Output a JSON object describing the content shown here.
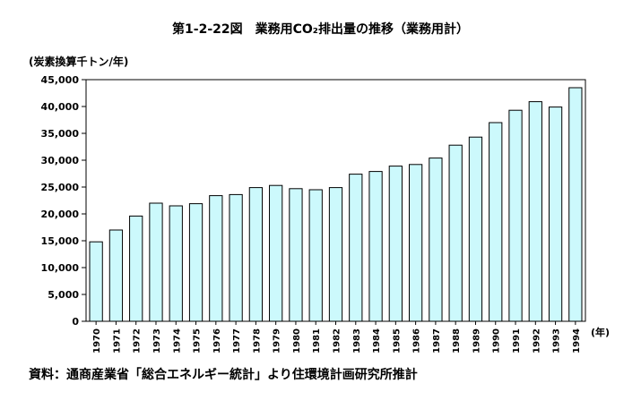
{
  "title": "第1-2-22図　業務用CO₂排出量の推移（業務用計）",
  "unit_label": "(炭素換算千トン/年)",
  "x_unit_label": "(年)",
  "source": "資料：通商産業省「総合エネルギー統計」より住環境計画研究所推計",
  "colors": {
    "bar_fill": "#ccf9fc",
    "bar_stroke": "#000000"
  },
  "chart_data": {
    "type": "bar",
    "title": "第1-2-22図　業務用CO₂排出量の推移（業務用計）",
    "ylabel": "(炭素換算千トン/年)",
    "xlabel": "(年)",
    "categories": [
      "1970",
      "1971",
      "1972",
      "1973",
      "1974",
      "1975",
      "1976",
      "1977",
      "1978",
      "1979",
      "1980",
      "1981",
      "1982",
      "1983",
      "1984",
      "1985",
      "1986",
      "1987",
      "1988",
      "1989",
      "1990",
      "1991",
      "1992",
      "1993",
      "1994"
    ],
    "values": [
      14800,
      17000,
      19600,
      22000,
      21500,
      21900,
      23400,
      23600,
      24900,
      25300,
      24700,
      24500,
      24900,
      27400,
      27900,
      28900,
      29200,
      30400,
      32800,
      34300,
      37000,
      39300,
      40900,
      39900,
      43500
    ],
    "ylim": [
      0,
      45000
    ],
    "yticks": [
      "0",
      "5,000",
      "10,000",
      "15,000",
      "20,000",
      "25,000",
      "30,000",
      "35,000",
      "40,000",
      "45,000"
    ],
    "grid": false,
    "legend": "none"
  }
}
